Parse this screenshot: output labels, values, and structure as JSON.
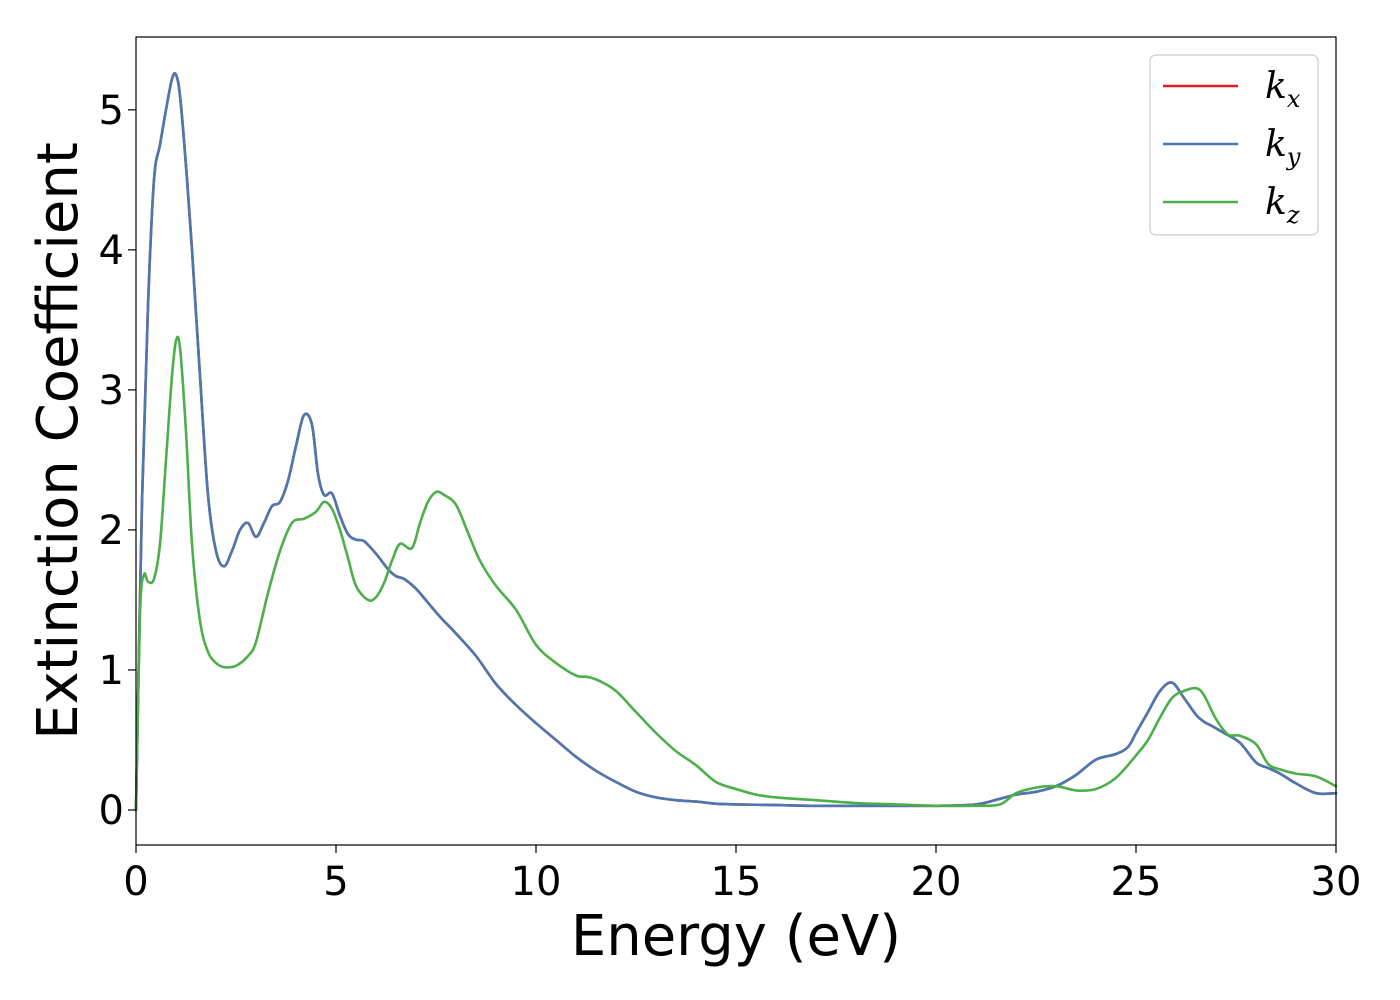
{
  "chart_data": {
    "type": "line",
    "title": "",
    "xlabel": "Energy (eV)",
    "ylabel": "Extinction Coefficient",
    "xlim": [
      0,
      30
    ],
    "ylim": [
      -0.25,
      5.52
    ],
    "xticks": [
      0,
      5,
      10,
      15,
      20,
      25,
      30
    ],
    "xtick_labels": [
      "0",
      "5",
      "10",
      "15",
      "20",
      "25",
      "30"
    ],
    "yticks": [
      0,
      1,
      2,
      3,
      4,
      5
    ],
    "ytick_labels": [
      "0",
      "1",
      "2",
      "3",
      "4",
      "5"
    ],
    "grid": false,
    "legend_position": "top-right",
    "series": [
      {
        "name": "k_x",
        "label_base": "k",
        "label_sub": "x",
        "color": "#e41a1c",
        "x": [
          0,
          0.15,
          0.3,
          0.45,
          0.6,
          0.75,
          0.9,
          1.0,
          1.1,
          1.25,
          1.4,
          1.6,
          1.8,
          2.0,
          2.2,
          2.4,
          2.6,
          2.8,
          3.0,
          3.2,
          3.4,
          3.6,
          3.8,
          4.0,
          4.2,
          4.4,
          4.55,
          4.7,
          4.9,
          5.1,
          5.3,
          5.5,
          5.7,
          6.0,
          6.3,
          6.5,
          6.7,
          7.0,
          7.3,
          7.6,
          8.0,
          8.5,
          9.0,
          9.5,
          10.0,
          10.5,
          11.0,
          11.5,
          12.0,
          12.5,
          13.0,
          13.5,
          14.0,
          14.5,
          15.0,
          16.0,
          17.0,
          18.0,
          19.0,
          20.0,
          21.0,
          21.6,
          22.0,
          22.5,
          23.0,
          23.5,
          24.0,
          24.5,
          24.8,
          25.0,
          25.3,
          25.6,
          25.9,
          26.2,
          26.5,
          26.7,
          26.9,
          27.2,
          27.6,
          28.0,
          28.3,
          28.6,
          29.0,
          29.5,
          30.0
        ],
        "values": [
          0,
          2.2,
          3.6,
          4.5,
          4.75,
          5.0,
          5.22,
          5.25,
          5.1,
          4.6,
          4.0,
          3.1,
          2.25,
          1.85,
          1.74,
          1.85,
          2.0,
          2.05,
          1.95,
          2.05,
          2.17,
          2.2,
          2.35,
          2.6,
          2.82,
          2.75,
          2.4,
          2.25,
          2.26,
          2.1,
          1.97,
          1.93,
          1.92,
          1.83,
          1.72,
          1.67,
          1.65,
          1.58,
          1.48,
          1.38,
          1.26,
          1.1,
          0.9,
          0.75,
          0.62,
          0.5,
          0.38,
          0.28,
          0.2,
          0.13,
          0.09,
          0.07,
          0.06,
          0.045,
          0.04,
          0.035,
          0.03,
          0.03,
          0.03,
          0.03,
          0.04,
          0.08,
          0.11,
          0.13,
          0.17,
          0.25,
          0.36,
          0.4,
          0.45,
          0.55,
          0.7,
          0.85,
          0.91,
          0.8,
          0.68,
          0.63,
          0.6,
          0.55,
          0.48,
          0.34,
          0.3,
          0.26,
          0.19,
          0.12,
          0.12
        ]
      },
      {
        "name": "k_y",
        "label_base": "k",
        "label_sub": "y",
        "color": "#4a78b0",
        "x": [
          0,
          0.15,
          0.3,
          0.45,
          0.6,
          0.75,
          0.9,
          1.0,
          1.1,
          1.25,
          1.4,
          1.6,
          1.8,
          2.0,
          2.2,
          2.4,
          2.6,
          2.8,
          3.0,
          3.2,
          3.4,
          3.6,
          3.8,
          4.0,
          4.2,
          4.4,
          4.55,
          4.7,
          4.9,
          5.1,
          5.3,
          5.5,
          5.7,
          6.0,
          6.3,
          6.5,
          6.7,
          7.0,
          7.3,
          7.6,
          8.0,
          8.5,
          9.0,
          9.5,
          10.0,
          10.5,
          11.0,
          11.5,
          12.0,
          12.5,
          13.0,
          13.5,
          14.0,
          14.5,
          15.0,
          16.0,
          17.0,
          18.0,
          19.0,
          20.0,
          21.0,
          21.6,
          22.0,
          22.5,
          23.0,
          23.5,
          24.0,
          24.5,
          24.8,
          25.0,
          25.3,
          25.6,
          25.9,
          26.2,
          26.5,
          26.7,
          26.9,
          27.2,
          27.6,
          28.0,
          28.3,
          28.6,
          29.0,
          29.5,
          30.0
        ],
        "values": [
          0,
          2.2,
          3.6,
          4.5,
          4.75,
          5.0,
          5.22,
          5.25,
          5.1,
          4.6,
          4.0,
          3.1,
          2.25,
          1.85,
          1.74,
          1.85,
          2.0,
          2.05,
          1.95,
          2.05,
          2.17,
          2.2,
          2.35,
          2.6,
          2.82,
          2.75,
          2.4,
          2.25,
          2.26,
          2.1,
          1.97,
          1.93,
          1.92,
          1.83,
          1.72,
          1.67,
          1.65,
          1.58,
          1.48,
          1.38,
          1.26,
          1.1,
          0.9,
          0.75,
          0.62,
          0.5,
          0.38,
          0.28,
          0.2,
          0.13,
          0.09,
          0.07,
          0.06,
          0.045,
          0.04,
          0.035,
          0.03,
          0.03,
          0.03,
          0.03,
          0.04,
          0.08,
          0.11,
          0.13,
          0.17,
          0.25,
          0.36,
          0.4,
          0.45,
          0.55,
          0.7,
          0.85,
          0.91,
          0.8,
          0.68,
          0.63,
          0.6,
          0.55,
          0.48,
          0.34,
          0.3,
          0.26,
          0.19,
          0.12,
          0.12
        ]
      },
      {
        "name": "k_z",
        "label_base": "k",
        "label_sub": "z",
        "color": "#4daf4a",
        "x": [
          0,
          0.1,
          0.2,
          0.3,
          0.45,
          0.6,
          0.75,
          0.9,
          1.0,
          1.1,
          1.25,
          1.4,
          1.6,
          1.8,
          2.0,
          2.2,
          2.5,
          2.8,
          3.0,
          3.3,
          3.6,
          3.9,
          4.2,
          4.5,
          4.7,
          4.9,
          5.1,
          5.3,
          5.5,
          5.8,
          6.0,
          6.2,
          6.4,
          6.6,
          6.9,
          7.1,
          7.3,
          7.5,
          7.7,
          8.0,
          8.3,
          8.6,
          9.0,
          9.5,
          10.0,
          10.5,
          11.0,
          11.3,
          11.6,
          12.0,
          12.5,
          13.0,
          13.5,
          14.0,
          14.5,
          15.0,
          15.5,
          16.0,
          17.0,
          18.0,
          19.0,
          20.0,
          21.0,
          21.6,
          22.0,
          22.5,
          23.0,
          23.5,
          24.0,
          24.5,
          25.0,
          25.3,
          25.6,
          25.9,
          26.2,
          26.5,
          26.7,
          27.0,
          27.3,
          27.6,
          28.0,
          28.3,
          28.6,
          29.0,
          29.5,
          30.0
        ],
        "values": [
          0,
          1.4,
          1.68,
          1.63,
          1.65,
          1.9,
          2.5,
          3.1,
          3.35,
          3.3,
          2.7,
          1.9,
          1.35,
          1.13,
          1.05,
          1.02,
          1.03,
          1.1,
          1.2,
          1.55,
          1.85,
          2.05,
          2.08,
          2.13,
          2.2,
          2.15,
          2.0,
          1.8,
          1.6,
          1.5,
          1.52,
          1.62,
          1.78,
          1.9,
          1.87,
          2.05,
          2.2,
          2.27,
          2.25,
          2.18,
          1.98,
          1.78,
          1.6,
          1.43,
          1.18,
          1.05,
          0.96,
          0.95,
          0.92,
          0.85,
          0.7,
          0.55,
          0.42,
          0.32,
          0.2,
          0.15,
          0.11,
          0.09,
          0.07,
          0.05,
          0.04,
          0.03,
          0.03,
          0.04,
          0.12,
          0.16,
          0.17,
          0.14,
          0.15,
          0.23,
          0.39,
          0.5,
          0.66,
          0.8,
          0.85,
          0.87,
          0.82,
          0.65,
          0.54,
          0.53,
          0.47,
          0.33,
          0.29,
          0.26,
          0.24,
          0.17
        ]
      }
    ]
  }
}
